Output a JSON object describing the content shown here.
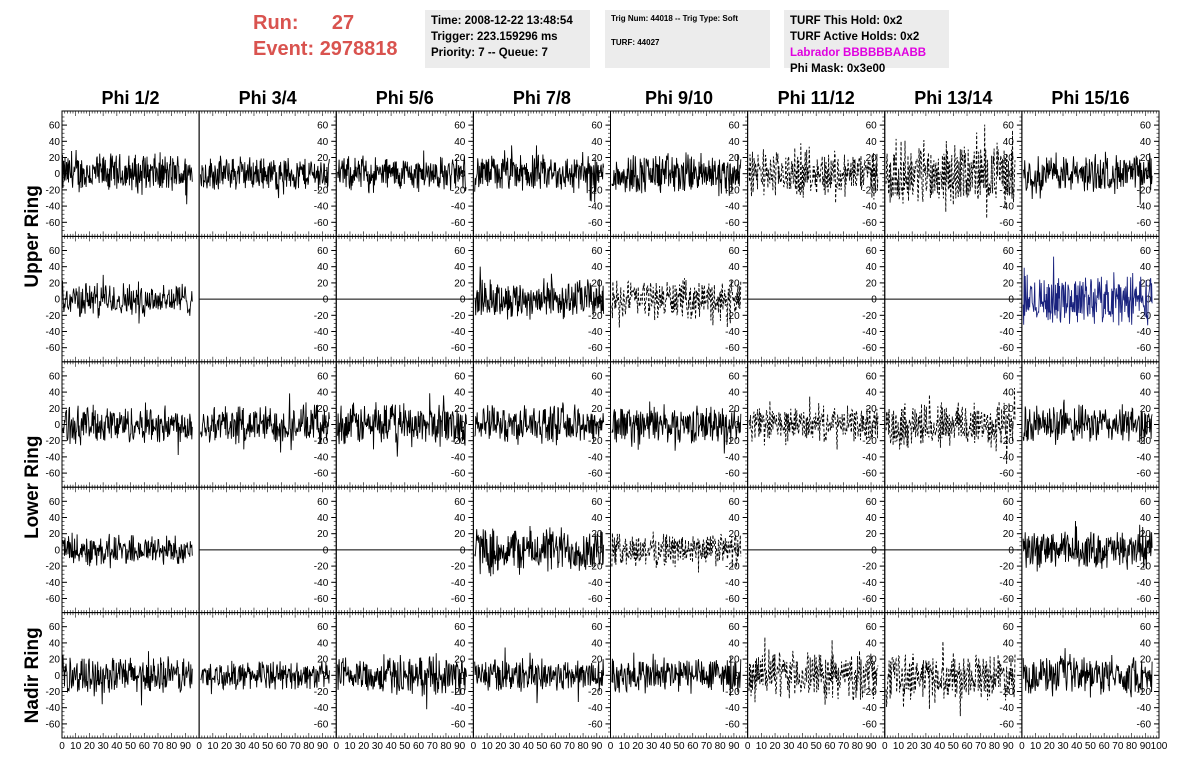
{
  "header": {
    "run_label": "Run:",
    "run_value": "27",
    "event_label": "Event:",
    "event_value": "2978818",
    "box1": {
      "time": "Time: 2008-12-22 13:48:54",
      "trigger": "Trigger: 223.159296 ms",
      "priority": "Priority: 7 -- Queue: 7"
    },
    "box2": {
      "trig": "Trig Num: 44018 -- Trig Type: Soft",
      "turf": "TURF: 44027"
    },
    "box3": {
      "this_hold": "TURF This Hold: 0x2",
      "active_holds": "TURF Active Holds: 0x2",
      "labrador": "Labrador BBBBBBAABB",
      "phi_mask": "Phi Mask: 0x3e00"
    }
  },
  "colors": {
    "header_red": "#d9534f",
    "labrador": "#e000e0",
    "trace": "#000000",
    "highlight_trace": "#1a237e",
    "panel_border": "#000000",
    "info_box_bg": "#ececec"
  },
  "chart_data": {
    "type": "line",
    "columns": [
      "Phi 1/2",
      "Phi 3/4",
      "Phi 5/6",
      "Phi 7/8",
      "Phi 9/10",
      "Phi 11/12",
      "Phi 13/14",
      "Phi 15/16"
    ],
    "row_groups": [
      {
        "label": "Upper Ring",
        "rows": [
          0,
          1
        ]
      },
      {
        "label": "Lower Ring",
        "rows": [
          2,
          3
        ]
      },
      {
        "label": "Nadir Ring",
        "rows": [
          4
        ]
      }
    ],
    "ylim": [
      -70,
      70
    ],
    "yticks": [
      -60,
      -40,
      -20,
      0,
      20,
      40,
      60
    ],
    "xlim": [
      0,
      100
    ],
    "xtick_labels": [
      "0",
      "10",
      "20",
      "30",
      "40",
      "50",
      "60",
      "70",
      "80",
      "90",
      "100"
    ],
    "panels": [
      [
        {
          "style": "solid",
          "amp": 26,
          "color": "trace"
        },
        {
          "style": "solid",
          "amp": 22,
          "color": "trace"
        },
        {
          "style": "solid",
          "amp": 22,
          "color": "trace"
        },
        {
          "style": "solid",
          "amp": 24,
          "color": "trace"
        },
        {
          "style": "solid",
          "amp": 27,
          "color": "trace"
        },
        {
          "style": "dashed",
          "amp": 30,
          "color": "trace"
        },
        {
          "style": "dashed",
          "amp": 40,
          "color": "trace"
        },
        {
          "style": "solid",
          "amp": 24,
          "color": "trace"
        }
      ],
      [
        {
          "style": "solid",
          "amp": 22,
          "color": "trace"
        },
        {
          "style": "flat",
          "amp": 0,
          "color": "trace"
        },
        {
          "style": "flat",
          "amp": 0,
          "color": "trace"
        },
        {
          "style": "solid",
          "amp": 25,
          "color": "trace"
        },
        {
          "style": "dashed",
          "amp": 25,
          "color": "trace"
        },
        {
          "style": "flat",
          "amp": 0,
          "color": "trace"
        },
        {
          "style": "flat",
          "amp": 0,
          "color": "trace"
        },
        {
          "style": "solid",
          "amp": 32,
          "color": "highlight_trace"
        }
      ],
      [
        {
          "style": "solid",
          "amp": 24,
          "color": "trace"
        },
        {
          "style": "solid",
          "amp": 25,
          "color": "trace"
        },
        {
          "style": "solid",
          "amp": 27,
          "color": "trace"
        },
        {
          "style": "solid",
          "amp": 24,
          "color": "trace"
        },
        {
          "style": "solid",
          "amp": 24,
          "color": "trace"
        },
        {
          "style": "dashed",
          "amp": 22,
          "color": "trace"
        },
        {
          "style": "dashed",
          "amp": 32,
          "color": "trace"
        },
        {
          "style": "solid",
          "amp": 24,
          "color": "trace"
        }
      ],
      [
        {
          "style": "solid",
          "amp": 20,
          "color": "trace"
        },
        {
          "style": "flat",
          "amp": 0,
          "color": "trace"
        },
        {
          "style": "flat",
          "amp": 0,
          "color": "trace"
        },
        {
          "style": "solid",
          "amp": 30,
          "color": "trace"
        },
        {
          "style": "dashed",
          "amp": 22,
          "color": "trace"
        },
        {
          "style": "flat",
          "amp": 0,
          "color": "trace"
        },
        {
          "style": "flat",
          "amp": 0,
          "color": "trace"
        },
        {
          "style": "solid",
          "amp": 24,
          "color": "trace"
        }
      ],
      [
        {
          "style": "solid",
          "amp": 24,
          "color": "trace"
        },
        {
          "style": "solid",
          "amp": 18,
          "color": "trace"
        },
        {
          "style": "solid",
          "amp": 24,
          "color": "trace"
        },
        {
          "style": "solid",
          "amp": 22,
          "color": "trace"
        },
        {
          "style": "solid",
          "amp": 24,
          "color": "trace"
        },
        {
          "style": "dashed",
          "amp": 30,
          "color": "trace"
        },
        {
          "style": "dashed",
          "amp": 30,
          "color": "trace"
        },
        {
          "style": "solid",
          "amp": 24,
          "color": "trace"
        }
      ]
    ]
  }
}
